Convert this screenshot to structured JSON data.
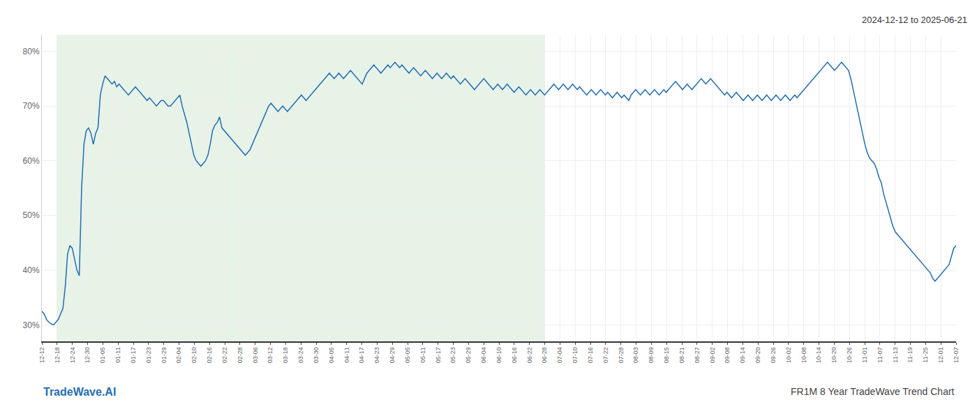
{
  "chart_data": {
    "type": "line",
    "title": "2024-12-12 to 2025-06-21",
    "annotations": [
      "TradeWave.AI",
      "FR1M 8 Year TradeWave Trend Chart"
    ],
    "color": "#1f6db5",
    "grid": true,
    "xlim": [
      0,
      60
    ],
    "xticks": [
      {
        "value": 0,
        "label": "12-12"
      },
      {
        "value": 1,
        "label": "12-18"
      },
      {
        "value": 2,
        "label": "12-24"
      },
      {
        "value": 3,
        "label": "12-30"
      },
      {
        "value": 4,
        "label": "01-05"
      },
      {
        "value": 5,
        "label": "01-11"
      },
      {
        "value": 6,
        "label": "01-17"
      },
      {
        "value": 7,
        "label": "01-23"
      },
      {
        "value": 8,
        "label": "01-29"
      },
      {
        "value": 9,
        "label": "02-04"
      },
      {
        "value": 10,
        "label": "02-10"
      },
      {
        "value": 11,
        "label": "02-16"
      },
      {
        "value": 12,
        "label": "02-22"
      },
      {
        "value": 13,
        "label": "02-28"
      },
      {
        "value": 14,
        "label": "03-06"
      },
      {
        "value": 15,
        "label": "03-12"
      },
      {
        "value": 16,
        "label": "03-18"
      },
      {
        "value": 17,
        "label": "03-24"
      },
      {
        "value": 18,
        "label": "03-30"
      },
      {
        "value": 19,
        "label": "04-05"
      },
      {
        "value": 20,
        "label": "04-11"
      },
      {
        "value": 21,
        "label": "04-17"
      },
      {
        "value": 22,
        "label": "04-23"
      },
      {
        "value": 23,
        "label": "04-29"
      },
      {
        "value": 24,
        "label": "05-05"
      },
      {
        "value": 25,
        "label": "05-11"
      },
      {
        "value": 26,
        "label": "05-17"
      },
      {
        "value": 27,
        "label": "05-23"
      },
      {
        "value": 28,
        "label": "05-29"
      },
      {
        "value": 29,
        "label": "06-04"
      },
      {
        "value": 30,
        "label": "06-10"
      },
      {
        "value": 31,
        "label": "06-16"
      },
      {
        "value": 32,
        "label": "06-22"
      },
      {
        "value": 33,
        "label": "06-28"
      },
      {
        "value": 34,
        "label": "07-04"
      },
      {
        "value": 35,
        "label": "07-10"
      },
      {
        "value": 36,
        "label": "07-16"
      },
      {
        "value": 37,
        "label": "07-22"
      },
      {
        "value": 38,
        "label": "07-28"
      },
      {
        "value": 39,
        "label": "08-03"
      },
      {
        "value": 40,
        "label": "08-09"
      },
      {
        "value": 41,
        "label": "08-15"
      },
      {
        "value": 42,
        "label": "08-21"
      },
      {
        "value": 43,
        "label": "08-27"
      },
      {
        "value": 44,
        "label": "09-02"
      },
      {
        "value": 45,
        "label": "09-08"
      },
      {
        "value": 46,
        "label": "09-14"
      },
      {
        "value": 47,
        "label": "09-20"
      },
      {
        "value": 48,
        "label": "09-26"
      },
      {
        "value": 49,
        "label": "10-02"
      },
      {
        "value": 50,
        "label": "10-08"
      },
      {
        "value": 51,
        "label": "10-14"
      },
      {
        "value": 52,
        "label": "10-20"
      },
      {
        "value": 53,
        "label": "10-26"
      },
      {
        "value": 54,
        "label": "11-01"
      },
      {
        "value": 55,
        "label": "11-07"
      },
      {
        "value": 56,
        "label": "11-13"
      },
      {
        "value": 57,
        "label": "11-19"
      },
      {
        "value": 58,
        "label": "11-25"
      },
      {
        "value": 59,
        "label": "12-01"
      },
      {
        "value": 60,
        "label": "12-07"
      }
    ],
    "ylim": [
      27,
      83
    ],
    "yticks": [
      {
        "value": 30,
        "label": "30%"
      },
      {
        "value": 40,
        "label": "40%"
      },
      {
        "value": 50,
        "label": "50%"
      },
      {
        "value": 60,
        "label": "60%"
      },
      {
        "value": 70,
        "label": "70%"
      },
      {
        "value": 80,
        "label": "80%"
      }
    ],
    "shade": {
      "from": 1,
      "to": 33,
      "color": "#d4ead4"
    },
    "values": [
      32.5,
      32.0,
      31.0,
      30.5,
      30.2,
      30.0,
      30.5,
      31.0,
      32.0,
      33.0,
      37.0,
      43.0,
      44.5,
      44.0,
      42.0,
      40.0,
      39.0,
      55.0,
      63.0,
      65.5,
      66.0,
      65.0,
      63.0,
      65.0,
      66.0,
      72.0,
      74.0,
      75.5,
      75.0,
      74.5,
      74.0,
      74.5,
      73.5,
      74.0,
      73.5,
      73.0,
      72.5,
      72.0,
      72.5,
      73.0,
      73.5,
      73.0,
      72.5,
      72.0,
      71.5,
      71.0,
      71.5,
      71.0,
      70.5,
      70.0,
      70.5,
      71.0,
      71.0,
      70.5,
      70.0,
      70.0,
      70.5,
      71.0,
      71.5,
      72.0,
      70.0,
      68.5,
      67.0,
      65.0,
      63.0,
      61.0,
      60.0,
      59.5,
      59.0,
      59.5,
      60.0,
      61.0,
      63.0,
      65.5,
      66.5,
      67.0,
      68.0,
      66.0,
      65.5,
      65.0,
      64.5,
      64.0,
      63.5,
      63.0,
      62.5,
      62.0,
      61.5,
      61.0,
      61.5,
      62.0,
      63.0,
      64.0,
      65.0,
      66.0,
      67.0,
      68.0,
      69.0,
      70.0,
      70.5,
      70.0,
      69.5,
      69.0,
      69.5,
      70.0,
      69.5,
      69.0,
      69.5,
      70.0,
      70.5,
      71.0,
      71.5,
      72.0,
      71.5,
      71.0,
      71.5,
      72.0,
      72.5,
      73.0,
      73.5,
      74.0,
      74.5,
      75.0,
      75.5,
      76.0,
      75.5,
      75.0,
      75.5,
      76.0,
      75.5,
      75.0,
      75.5,
      76.0,
      76.5,
      76.0,
      75.5,
      75.0,
      74.5,
      74.0,
      75.0,
      76.0,
      76.5,
      77.0,
      77.5,
      77.0,
      76.5,
      76.0,
      76.5,
      77.0,
      77.5,
      77.0,
      77.5,
      78.0,
      77.5,
      77.0,
      77.5,
      77.0,
      76.5,
      76.0,
      76.5,
      77.0,
      76.5,
      76.0,
      75.5,
      76.0,
      76.5,
      76.0,
      75.5,
      75.0,
      75.5,
      76.0,
      75.5,
      75.0,
      75.5,
      76.0,
      75.5,
      75.0,
      75.5,
      75.0,
      74.5,
      74.0,
      74.5,
      75.0,
      74.5,
      74.0,
      73.5,
      73.0,
      73.5,
      74.0,
      74.5,
      75.0,
      74.5,
      74.0,
      73.5,
      73.0,
      73.5,
      74.0,
      73.5,
      73.0,
      73.5,
      74.0,
      73.5,
      73.0,
      72.5,
      73.0,
      73.5,
      73.0,
      72.5,
      72.0,
      72.5,
      73.0,
      72.5,
      72.0,
      72.5,
      73.0,
      72.5,
      72.0,
      72.5,
      73.0,
      73.5,
      74.0,
      73.5,
      73.0,
      73.5,
      74.0,
      73.5,
      73.0,
      73.5,
      74.0,
      73.5,
      73.0,
      73.5,
      73.0,
      72.5,
      72.0,
      72.5,
      73.0,
      72.5,
      72.0,
      72.5,
      73.0,
      72.5,
      72.0,
      72.5,
      72.0,
      71.5,
      72.0,
      72.5,
      72.0,
      71.5,
      72.0,
      71.5,
      71.0,
      72.0,
      72.5,
      73.0,
      72.5,
      72.0,
      72.5,
      73.0,
      72.5,
      72.0,
      72.5,
      73.0,
      72.5,
      72.0,
      72.5,
      73.0,
      72.5,
      73.0,
      73.5,
      74.0,
      74.5,
      74.0,
      73.5,
      73.0,
      73.5,
      74.0,
      73.5,
      73.0,
      73.5,
      74.0,
      74.5,
      75.0,
      74.5,
      74.0,
      74.5,
      75.0,
      74.5,
      74.0,
      73.5,
      73.0,
      72.5,
      72.0,
      72.5,
      72.0,
      71.5,
      72.0,
      72.5,
      72.0,
      71.5,
      71.0,
      71.5,
      72.0,
      71.5,
      71.0,
      71.5,
      72.0,
      71.5,
      71.0,
      71.5,
      72.0,
      71.5,
      71.0,
      71.5,
      72.0,
      71.5,
      71.0,
      71.5,
      72.0,
      71.5,
      71.0,
      71.5,
      72.0,
      71.5,
      72.0,
      72.5,
      73.0,
      73.5,
      74.0,
      74.5,
      75.0,
      75.5,
      76.0,
      76.5,
      77.0,
      77.5,
      78.0,
      77.5,
      77.0,
      76.5,
      77.0,
      77.5,
      78.0,
      77.5,
      77.0,
      76.5,
      75.0,
      73.0,
      71.0,
      69.0,
      67.0,
      65.0,
      63.0,
      61.5,
      60.5,
      60.0,
      59.5,
      58.5,
      57.0,
      56.0,
      54.0,
      52.5,
      51.0,
      49.5,
      48.0,
      47.0,
      46.5,
      46.0,
      45.5,
      45.0,
      44.5,
      44.0,
      43.5,
      43.0,
      42.5,
      42.0,
      41.5,
      41.0,
      40.5,
      40.0,
      39.5,
      38.5,
      38.0,
      38.5,
      39.0,
      39.5,
      40.0,
      40.5,
      41.0,
      42.5,
      44.0,
      44.5
    ]
  }
}
